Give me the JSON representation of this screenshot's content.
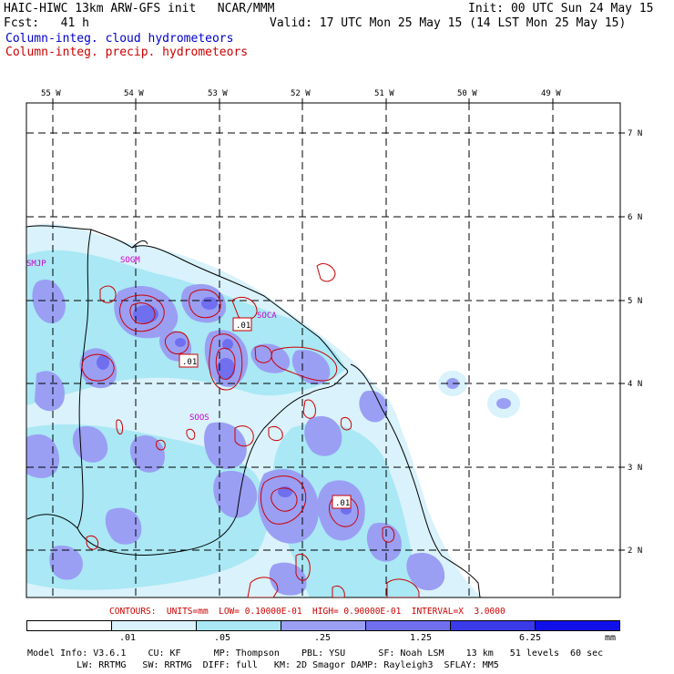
{
  "header": {
    "model_title": "HAIC-HIWC 13km ARW-GFS init   NCAR/MMM",
    "init_line": "Init: 00 UTC Sun 24 May 15",
    "fcst_line": "Fcst:   41 h",
    "valid_line": "Valid: 17 UTC Mon 25 May 15 (14 LST Mon 25 May 15)",
    "field_cloud": "Column-integ. cloud hydrometeors",
    "field_precip": "Column-integ. precip. hydrometeors"
  },
  "map": {
    "lon_labels": [
      "55 W",
      "54 W",
      "53 W",
      "52 W",
      "51 W",
      "50 W",
      "49 W"
    ],
    "lat_labels": [
      "7 N",
      "6 N",
      "5 N",
      "4 N",
      "3 N",
      "2 N"
    ],
    "station_labels": [
      "SMJP",
      "SOGM",
      "SOCA",
      "SOOS"
    ],
    "contour_labels": [
      ".01",
      ".01",
      ".01"
    ],
    "contour_color": "#cc0000",
    "fill_colors": [
      "#d9f2fb",
      "#a9e8f4",
      "#9a9ff4",
      "#6f6ff0",
      "#3a3ae8",
      "#1010e8"
    ]
  },
  "contours_info": "CONTOURS:  UNITS=mm  LOW= 0.10000E-01  HIGH= 0.90000E-01  INTERVAL=X  3.0000",
  "colorbar": {
    "labels": [
      ".01",
      ".05",
      ".25",
      "1.25",
      "6.25",
      "mm"
    ],
    "colors": [
      "#ffffff",
      "#d9f2fb",
      "#a9e8f4",
      "#9a9ff4",
      "#6f6ff0",
      "#3a3ae8",
      "#1010e8"
    ]
  },
  "footer": {
    "line1": "Model Info: V3.6.1    CU: KF      MP: Thompson    PBL: YSU      SF: Noah LSM    13 km   51 levels  60 sec",
    "line2": "         LW: RRTMG   SW: RRTMG  DIFF: full   KM: 2D Smagor DAMP: Rayleigh3  SFLAY: MM5"
  }
}
